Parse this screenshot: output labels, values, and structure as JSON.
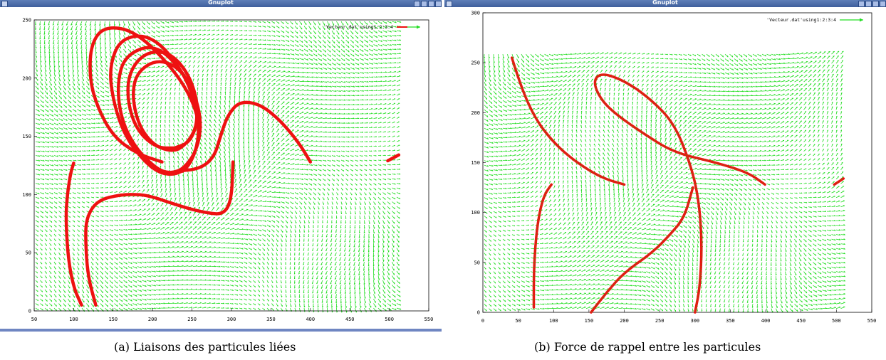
{
  "window": {
    "title": "Gnuplot"
  },
  "colors": {
    "vector": "#22dd22",
    "curve": "#ee1111",
    "curve_core": "#8a6a12",
    "titlebar": "#4a6aa8"
  },
  "captions": {
    "a": "(a) Liaisons des particules liées",
    "b": "(b) Force de rappel entre les particules"
  },
  "chart_data": [
    {
      "type": "vector-field",
      "legend": {
        "label": "'Vecteur.dat'using1:2:3:4",
        "position": "top-right"
      },
      "xlim": [
        50,
        550
      ],
      "ylim": [
        0,
        250
      ],
      "xticks": [
        "50",
        "100",
        "150",
        "200",
        "250",
        "300",
        "350",
        "400",
        "450",
        "500",
        "550"
      ],
      "yticks": [
        "0",
        "50",
        "100",
        "150",
        "200",
        "250"
      ],
      "field_extent": {
        "x": [
          50,
          510
        ],
        "y": [
          0,
          250
        ]
      },
      "curves": [
        {
          "points": [
            [
              128,
              5
            ],
            [
              118,
              30
            ],
            [
              115,
              60
            ],
            [
              116,
              80
            ],
            [
              130,
              95
            ],
            [
              160,
              100
            ],
            [
              185,
              100
            ],
            [
              200,
              98
            ],
            [
              213,
              95
            ],
            [
              245,
              88
            ],
            [
              270,
              84
            ],
            [
              290,
              83
            ],
            [
              300,
              95
            ],
            [
              302,
              128
            ]
          ]
        },
        {
          "points": [
            [
              110,
              5
            ],
            [
              100,
              20
            ],
            [
              93,
              45
            ],
            [
              90,
              80
            ],
            [
              92,
              100
            ],
            [
              96,
              118
            ],
            [
              100,
              127
            ]
          ]
        },
        {
          "points": [
            [
              212,
              128
            ],
            [
              180,
              135
            ],
            [
              150,
              150
            ],
            [
              130,
              175
            ],
            [
              120,
              200
            ],
            [
              122,
              230
            ],
            [
              140,
              245
            ],
            [
              180,
              240
            ],
            [
              230,
              205
            ],
            [
              255,
              175
            ],
            [
              260,
              150
            ],
            [
              248,
              125
            ],
            [
              230,
              117
            ],
            [
              210,
              118
            ],
            [
              190,
              128
            ],
            [
              165,
              150
            ],
            [
              150,
              180
            ],
            [
              145,
              210
            ],
            [
              160,
              235
            ],
            [
              200,
              237
            ],
            [
              240,
              205
            ],
            [
              258,
              170
            ],
            [
              258,
              140
            ],
            [
              240,
              122
            ],
            [
              222,
              118
            ],
            [
              205,
              122
            ],
            [
              178,
              140
            ],
            [
              160,
              165
            ],
            [
              155,
              195
            ],
            [
              165,
              220
            ],
            [
              205,
              230
            ],
            [
              245,
              200
            ],
            [
              262,
              168
            ],
            [
              258,
              140
            ],
            [
              238,
              120
            ]
          ]
        },
        {
          "points": [
            [
              228,
              140
            ],
            [
              205,
              140
            ],
            [
              180,
              155
            ],
            [
              168,
              180
            ],
            [
              170,
              205
            ],
            [
              190,
              222
            ],
            [
              220,
              223
            ],
            [
              245,
              205
            ],
            [
              258,
              178
            ],
            [
              255,
              155
            ],
            [
              238,
              140
            ],
            [
              222,
              137
            ],
            [
              200,
              143
            ],
            [
              182,
              160
            ],
            [
              174,
              185
            ],
            [
              180,
              205
            ],
            [
              205,
              216
            ],
            [
              232,
              210
            ],
            [
              252,
              190
            ],
            [
              258,
              165
            ],
            [
              248,
              145
            ],
            [
              228,
              140
            ]
          ]
        },
        {
          "points": [
            [
              230,
              120
            ],
            [
              260,
              122
            ],
            [
              278,
              132
            ],
            [
              286,
              150
            ],
            [
              295,
              168
            ],
            [
              310,
              180
            ],
            [
              335,
              178
            ],
            [
              360,
              165
            ],
            [
              385,
              145
            ],
            [
              400,
              128
            ]
          ]
        },
        {
          "points": [
            [
              498,
              129
            ],
            [
              512,
              134
            ]
          ]
        }
      ]
    },
    {
      "type": "vector-field",
      "legend": {
        "label": "'Vecteur.dat'using1:2:3:4",
        "position": "top-right"
      },
      "xlim": [
        0,
        550
      ],
      "ylim": [
        0,
        300
      ],
      "xticks": [
        "0",
        "50",
        "100",
        "150",
        "200",
        "250",
        "300",
        "350",
        "400",
        "450",
        "500",
        "550"
      ],
      "yticks": [
        "0",
        "50",
        "100",
        "150",
        "200",
        "250",
        "300"
      ],
      "field_extent": {
        "x": [
          0,
          510
        ],
        "y": [
          0,
          260
        ]
      },
      "curves": [
        {
          "points": [
            [
              41,
              255
            ],
            [
              50,
              235
            ],
            [
              62,
              212
            ],
            [
              78,
              190
            ],
            [
              98,
              172
            ],
            [
              120,
              157
            ],
            [
              150,
              142
            ],
            [
              175,
              133
            ],
            [
              200,
              128
            ]
          ]
        },
        {
          "points": [
            [
              72,
              5
            ],
            [
              72,
              40
            ],
            [
              75,
              75
            ],
            [
              80,
              100
            ],
            [
              87,
              118
            ],
            [
              97,
              128
            ]
          ]
        },
        {
          "points": [
            [
              153,
              0
            ],
            [
              175,
              20
            ],
            [
              200,
              40
            ],
            [
              240,
              60
            ],
            [
              265,
              78
            ],
            [
              285,
              95
            ],
            [
              297,
              125
            ]
          ]
        },
        {
          "points": [
            [
              300,
              0
            ],
            [
              307,
              25
            ],
            [
              310,
              70
            ],
            [
              305,
              115
            ],
            [
              293,
              150
            ],
            [
              270,
              190
            ],
            [
              235,
              215
            ],
            [
              200,
              232
            ],
            [
              168,
              240
            ],
            [
              156,
              232
            ],
            [
              165,
              215
            ],
            [
              185,
              200
            ],
            [
              225,
              180
            ],
            [
              270,
              160
            ],
            [
              330,
              150
            ],
            [
              375,
              140
            ],
            [
              399,
              128
            ]
          ]
        },
        {
          "points": [
            [
              497,
              128
            ],
            [
              510,
              134
            ]
          ]
        }
      ]
    }
  ]
}
